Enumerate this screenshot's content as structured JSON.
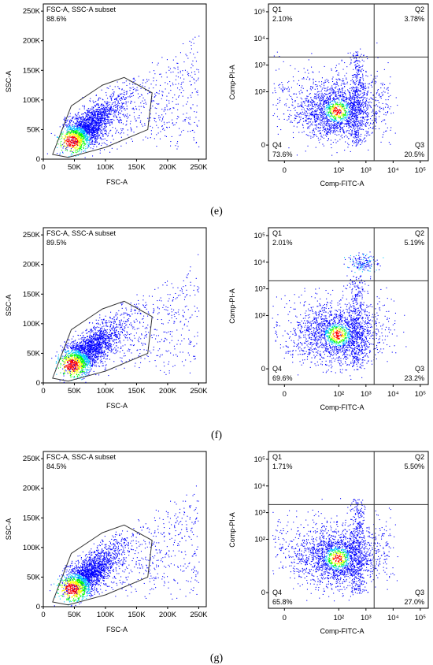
{
  "panels": [
    {
      "label": "(e)",
      "scatter": {
        "gate_name": "FSC-A, SSC-A subset",
        "gate_pct": "88.6%"
      },
      "quadrant": {
        "q1": {
          "name": "Q1",
          "pct": "2.10%"
        },
        "q2": {
          "name": "Q2",
          "pct": "3.78%"
        },
        "q3": {
          "name": "Q3",
          "pct": "20.5%"
        },
        "q4": {
          "name": "Q4",
          "pct": "73.6%"
        }
      }
    },
    {
      "label": "(f)",
      "scatter": {
        "gate_name": "FSC-A, SSC-A subset",
        "gate_pct": "89.5%"
      },
      "quadrant": {
        "q1": {
          "name": "Q1",
          "pct": "2.01%"
        },
        "q2": {
          "name": "Q2",
          "pct": "5.19%"
        },
        "q3": {
          "name": "Q3",
          "pct": "23.2%"
        },
        "q4": {
          "name": "Q4",
          "pct": "69.6%"
        }
      }
    },
    {
      "label": "(g)",
      "scatter": {
        "gate_name": "FSC-A, SSC-A subset",
        "gate_pct": "84.5%"
      },
      "quadrant": {
        "q1": {
          "name": "Q1",
          "pct": "1.71%"
        },
        "q2": {
          "name": "Q2",
          "pct": "5.50%"
        },
        "q3": {
          "name": "Q3",
          "pct": "27.0%"
        },
        "q4": {
          "name": "Q4",
          "pct": "65.8%"
        }
      }
    }
  ],
  "chart_data": [
    {
      "type": "scatter",
      "xlabel": "FSC-A",
      "ylabel": "SSC-A",
      "xlim": [
        0,
        262144
      ],
      "ylim": [
        0,
        262144
      ],
      "xticks": [
        0,
        50000,
        100000,
        150000,
        200000,
        250000
      ],
      "xtick_labels": [
        "0",
        "50K",
        "100K",
        "150K",
        "200K",
        "250K"
      ],
      "yticks": [
        0,
        50000,
        100000,
        150000,
        200000,
        250000
      ],
      "ytick_labels": [
        "0",
        "50K",
        "100K",
        "150K",
        "200K",
        "250K"
      ],
      "colormap": [
        "#0000ff",
        "#00c8ff",
        "#00ff00",
        "#ffff00",
        "#ff0000"
      ],
      "gate_polygon": [
        [
          15000,
          8000
        ],
        [
          45000,
          90000
        ],
        [
          95000,
          125000
        ],
        [
          130000,
          138000
        ],
        [
          175000,
          112000
        ],
        [
          168000,
          50000
        ],
        [
          100000,
          20000
        ],
        [
          40000,
          3000
        ]
      ],
      "density": {
        "center": [
          45000,
          30000
        ],
        "spread": [
          38000,
          35000
        ]
      }
    },
    {
      "type": "scatter",
      "xlabel": "Comp-FITC-A",
      "ylabel": "Comp-PI-A",
      "scale": "biexponential",
      "xticks": [
        0,
        100,
        1000,
        10000,
        100000
      ],
      "xtick_labels": [
        "0",
        "10²",
        "10³",
        "10⁴",
        "10⁵"
      ],
      "yticks": [
        0,
        100,
        1000,
        10000,
        100000
      ],
      "ytick_labels": [
        "0",
        "10²",
        "10³",
        "10⁴",
        "10⁵"
      ],
      "quadrant_gate": {
        "x": 2000,
        "y": 2000
      },
      "colormap": [
        "#0000ff",
        "#00c8ff",
        "#00ff00",
        "#ffff00",
        "#ff0000"
      ]
    }
  ]
}
